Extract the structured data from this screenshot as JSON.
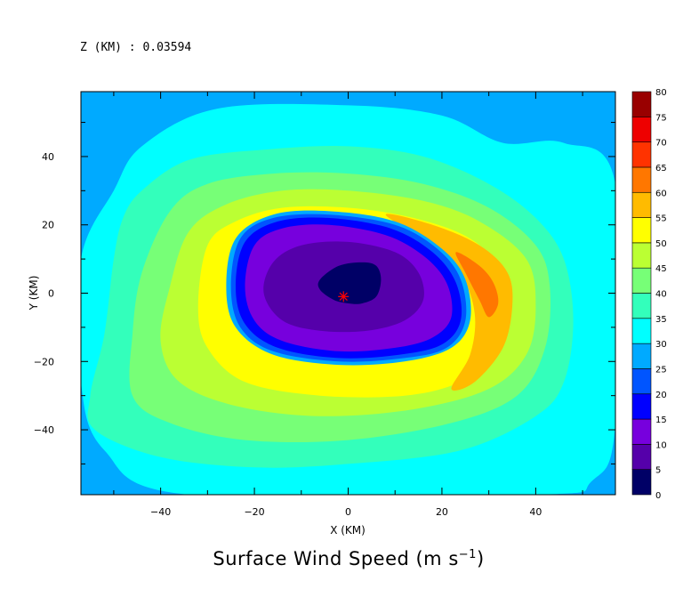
{
  "header": {
    "level_label": "Z (KM) : 0.03594"
  },
  "title": {
    "text": "Surface Wind Speed (m s",
    "exponent": "−1",
    "close": ")"
  },
  "chart_data": {
    "type": "heatmap",
    "title": "Surface Wind Speed (m s−1)",
    "xlabel": "X (KM)",
    "ylabel": "Y (KM)",
    "xlim": [
      -57,
      57
    ],
    "ylim": [
      -59,
      59
    ],
    "xticks": [
      -40,
      -20,
      0,
      20,
      40
    ],
    "yticks": [
      -40,
      -20,
      0,
      20,
      40
    ],
    "colorbar": {
      "levels": [
        0,
        5,
        10,
        15,
        20,
        25,
        30,
        35,
        40,
        45,
        50,
        55,
        60,
        65,
        70,
        75,
        80
      ],
      "colors": [
        "#000066",
        "#5500aa",
        "#7700dd",
        "#0000ff",
        "#0055ff",
        "#00aaff",
        "#00ffff",
        "#33ffbb",
        "#77ff77",
        "#bbff33",
        "#ffff00",
        "#ffbb00",
        "#ff7700",
        "#ff3300",
        "#ee0000",
        "#990000"
      ]
    },
    "storm_center": {
      "x": -1,
      "y": -1,
      "color": "#ff0000"
    },
    "contours": [
      {
        "band": "30-35",
        "color": "#00ffff",
        "points": [
          [
            -44,
            43
          ],
          [
            -28,
            54
          ],
          [
            0,
            55
          ],
          [
            20,
            52
          ],
          [
            33,
            44
          ],
          [
            46,
            44
          ],
          [
            57,
            32
          ],
          [
            57,
            -38
          ],
          [
            52,
            -55
          ],
          [
            40,
            -59
          ],
          [
            -34,
            -59
          ],
          [
            -52,
            -46
          ],
          [
            -57,
            -26
          ],
          [
            -57,
            10
          ],
          [
            -50,
            30
          ]
        ]
      },
      {
        "band": "35-40",
        "color": "#33ffbb",
        "points": [
          [
            -44,
            30
          ],
          [
            -34,
            39
          ],
          [
            -18,
            42
          ],
          [
            0,
            43
          ],
          [
            16,
            40
          ],
          [
            30,
            32
          ],
          [
            40,
            22
          ],
          [
            46,
            10
          ],
          [
            48,
            -8
          ],
          [
            46,
            -26
          ],
          [
            40,
            -36
          ],
          [
            24,
            -46
          ],
          [
            0,
            -50
          ],
          [
            -20,
            -51
          ],
          [
            -40,
            -48
          ],
          [
            -54,
            -40
          ],
          [
            -55,
            -30
          ],
          [
            -52,
            -12
          ],
          [
            -50,
            10
          ],
          [
            -48,
            22
          ]
        ]
      },
      {
        "band": "40-45",
        "color": "#77ff77",
        "points": [
          [
            -38,
            24
          ],
          [
            -30,
            32
          ],
          [
            -16,
            35
          ],
          [
            0,
            35
          ],
          [
            16,
            32
          ],
          [
            30,
            25
          ],
          [
            40,
            14
          ],
          [
            43,
            2
          ],
          [
            42,
            -16
          ],
          [
            36,
            -30
          ],
          [
            22,
            -38
          ],
          [
            0,
            -43
          ],
          [
            -22,
            -43
          ],
          [
            -38,
            -38
          ],
          [
            -46,
            -30
          ],
          [
            -46,
            -12
          ],
          [
            -44,
            6
          ]
        ]
      },
      {
        "band": "45-50",
        "color": "#bbff33",
        "points": [
          [
            -34,
            18
          ],
          [
            -26,
            26
          ],
          [
            -14,
            30
          ],
          [
            0,
            30
          ],
          [
            16,
            27
          ],
          [
            28,
            21
          ],
          [
            38,
            10
          ],
          [
            40,
            -4
          ],
          [
            38,
            -18
          ],
          [
            30,
            -28
          ],
          [
            14,
            -34
          ],
          [
            -6,
            -36
          ],
          [
            -24,
            -33
          ],
          [
            -36,
            -26
          ],
          [
            -40,
            -14
          ],
          [
            -38,
            2
          ]
        ]
      },
      {
        "band": "50-55",
        "color": "#ffff00",
        "points": [
          [
            -30,
            14
          ],
          [
            -24,
            21
          ],
          [
            -14,
            25
          ],
          [
            0,
            25
          ],
          [
            14,
            22
          ],
          [
            26,
            16
          ],
          [
            33,
            6
          ],
          [
            34,
            -6
          ],
          [
            32,
            -18
          ],
          [
            24,
            -26
          ],
          [
            12,
            -30
          ],
          [
            -6,
            -30
          ],
          [
            -22,
            -26
          ],
          [
            -30,
            -16
          ],
          [
            -32,
            -4
          ]
        ]
      },
      {
        "band": "55-60",
        "color": "#ffbb00",
        "points": [
          [
            8,
            23
          ],
          [
            18,
            20
          ],
          [
            28,
            14
          ],
          [
            34,
            6
          ],
          [
            35,
            -4
          ],
          [
            33,
            -16
          ],
          [
            27,
            -26
          ],
          [
            22,
            -28
          ],
          [
            26,
            -18
          ],
          [
            27,
            -6
          ],
          [
            24,
            6
          ],
          [
            18,
            14
          ]
        ]
      },
      {
        "band": "60-65",
        "color": "#ff7700",
        "points": [
          [
            23,
            12
          ],
          [
            28,
            8
          ],
          [
            31,
            3
          ],
          [
            32,
            -3
          ],
          [
            30,
            -7
          ],
          [
            28,
            -2
          ],
          [
            25,
            6
          ]
        ]
      },
      {
        "band": "25-30",
        "color": "#00aaff",
        "points": [
          [
            -24,
            16
          ],
          [
            -16,
            23
          ],
          [
            -4,
            24
          ],
          [
            10,
            21
          ],
          [
            20,
            13
          ],
          [
            25,
            4
          ],
          [
            26,
            -8
          ],
          [
            22,
            -16
          ],
          [
            12,
            -20
          ],
          [
            -2,
            -21
          ],
          [
            -16,
            -18
          ],
          [
            -24,
            -10
          ],
          [
            -26,
            2
          ]
        ]
      },
      {
        "band": "20-25",
        "color": "#0055ff",
        "points": [
          [
            -23,
            16
          ],
          [
            -16,
            22
          ],
          [
            -4,
            23
          ],
          [
            10,
            20
          ],
          [
            19,
            13
          ],
          [
            24,
            4
          ],
          [
            25,
            -8
          ],
          [
            21,
            -16
          ],
          [
            12,
            -19
          ],
          [
            -2,
            -20
          ],
          [
            -16,
            -17
          ],
          [
            -23,
            -10
          ],
          [
            -25,
            2
          ]
        ]
      },
      {
        "band": "15-20",
        "color": "#0000ff",
        "points": [
          [
            -22,
            15
          ],
          [
            -15,
            21
          ],
          [
            -4,
            22
          ],
          [
            9,
            19
          ],
          [
            18,
            12
          ],
          [
            23,
            3
          ],
          [
            24,
            -8
          ],
          [
            20,
            -15
          ],
          [
            11,
            -18
          ],
          [
            -2,
            -19
          ],
          [
            -15,
            -16
          ],
          [
            -22,
            -9
          ],
          [
            -24,
            2
          ]
        ]
      },
      {
        "band": "10-15",
        "color": "#7700dd",
        "points": [
          [
            -20,
            14
          ],
          [
            -14,
            19
          ],
          [
            -4,
            20
          ],
          [
            8,
            17
          ],
          [
            16,
            11
          ],
          [
            21,
            3
          ],
          [
            22,
            -7
          ],
          [
            18,
            -13
          ],
          [
            10,
            -16
          ],
          [
            -2,
            -17
          ],
          [
            -14,
            -14
          ],
          [
            -20,
            -8
          ],
          [
            -22,
            2
          ]
        ]
      },
      {
        "band": "5-10",
        "color": "#5500aa",
        "points": [
          [
            -16,
            9
          ],
          [
            -10,
            14
          ],
          [
            0,
            15
          ],
          [
            10,
            12
          ],
          [
            15,
            6
          ],
          [
            16,
            -2
          ],
          [
            12,
            -8
          ],
          [
            4,
            -11
          ],
          [
            -6,
            -11
          ],
          [
            -14,
            -8
          ],
          [
            -18,
            0
          ]
        ]
      },
      {
        "band": "0-5",
        "color": "#000066",
        "points": [
          [
            -6,
            4
          ],
          [
            -2,
            8
          ],
          [
            3,
            9
          ],
          [
            6,
            8
          ],
          [
            7,
            4
          ],
          [
            6,
            -1
          ],
          [
            3,
            -3
          ],
          [
            0,
            -3
          ],
          [
            -3,
            -2
          ],
          [
            -6,
            1
          ]
        ]
      }
    ]
  }
}
